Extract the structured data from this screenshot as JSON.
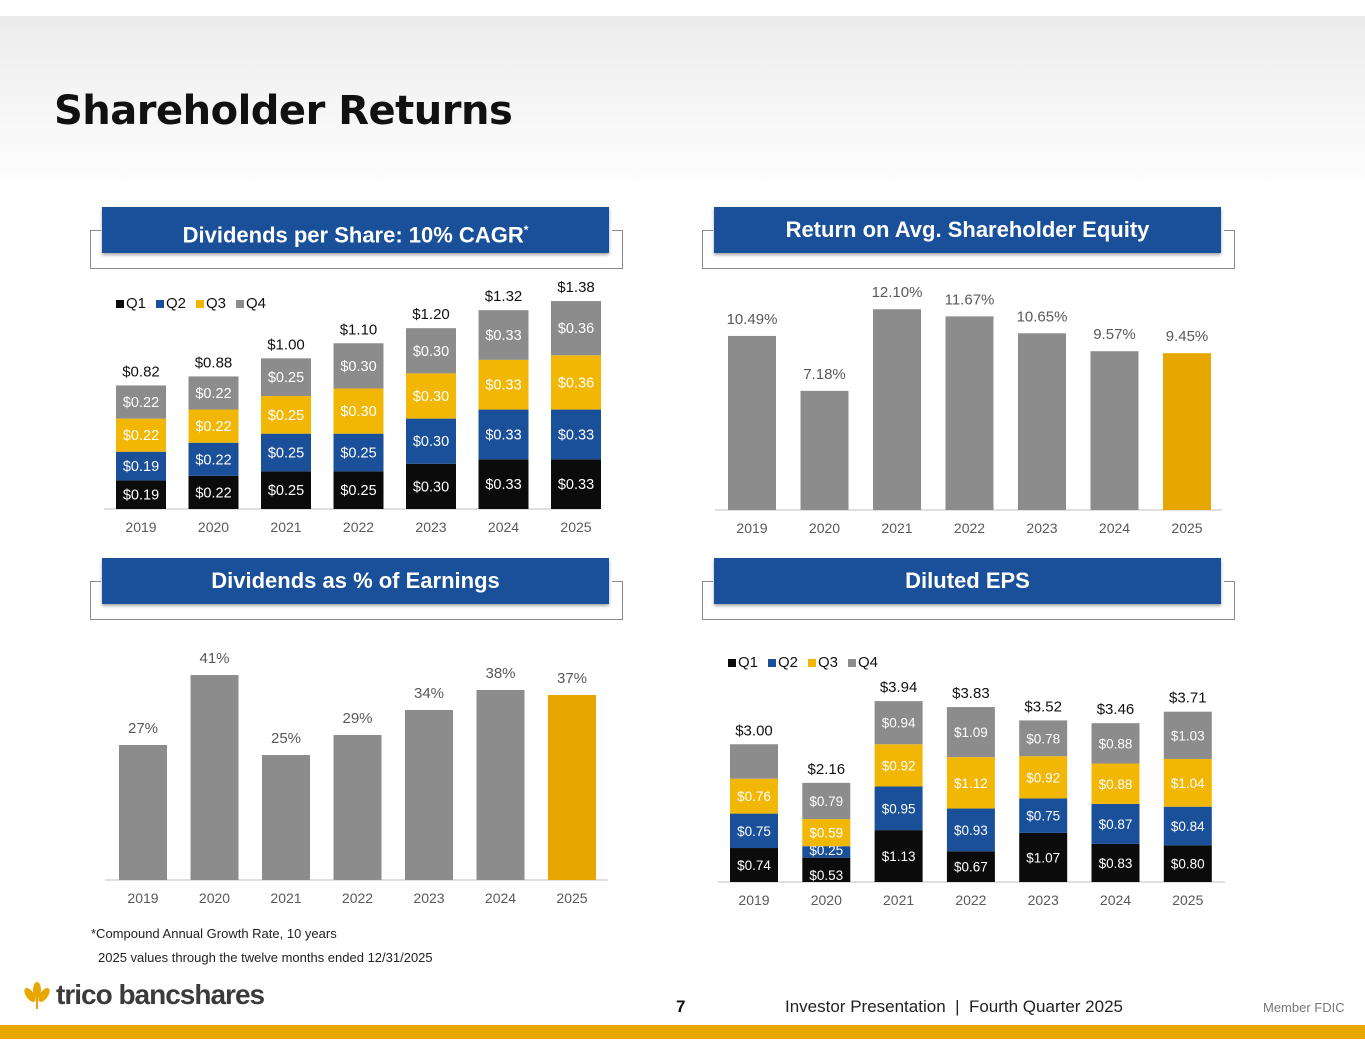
{
  "page_title": "Shareholder Returns",
  "panels": {
    "dividends": {
      "title": "Dividends per Share: 10% CAGR",
      "marker": "*"
    },
    "roe": {
      "title": "Return on Avg. Shareholder Equity"
    },
    "payout": {
      "title": "Dividends as % of Earnings"
    },
    "eps": {
      "title": "Diluted EPS"
    }
  },
  "footnotes": {
    "cagr": "*Compound Annual Growth Rate, 10 years",
    "period": "2025 values through the twelve months ended 12/31/2025"
  },
  "footer": {
    "logo_text": "trico bancshares",
    "page_number": "7",
    "presentation": "Investor Presentation  |  Fourth Quarter 2025",
    "member": "Member FDIC"
  },
  "colors": {
    "q1": "#0b0b0b",
    "q2": "#1a4f99",
    "q3": "#f2b705",
    "q4": "#8c8c8c",
    "gray": "#8c8c8c",
    "gold": "#e8a600",
    "header": "#1a4f99"
  },
  "chart_data": [
    {
      "id": "dividends",
      "type": "stacked-bar",
      "title": "Dividends per Share: 10% CAGR",
      "legend": [
        "Q1",
        "Q2",
        "Q3",
        "Q4"
      ],
      "legend_position": "top-left",
      "categories": [
        "2019",
        "2020",
        "2021",
        "2022",
        "2023",
        "2024",
        "2025"
      ],
      "series": [
        {
          "name": "Q1",
          "values": [
            0.19,
            0.22,
            0.25,
            0.25,
            0.3,
            0.33,
            0.33
          ],
          "labels": [
            "$0.19",
            "$0.22",
            "$0.25",
            "$0.25",
            "$0.30",
            "$0.33",
            "$0.33"
          ]
        },
        {
          "name": "Q2",
          "values": [
            0.19,
            0.22,
            0.25,
            0.25,
            0.3,
            0.33,
            0.33
          ],
          "labels": [
            "$0.19",
            "$0.22",
            "$0.25",
            "$0.25",
            "$0.30",
            "$0.33",
            "$0.33"
          ]
        },
        {
          "name": "Q3",
          "values": [
            0.22,
            0.22,
            0.25,
            0.3,
            0.3,
            0.33,
            0.36
          ],
          "labels": [
            "$0.22",
            "$0.22",
            "$0.25",
            "$0.30",
            "$0.30",
            "$0.33",
            "$0.36"
          ]
        },
        {
          "name": "Q4",
          "values": [
            0.22,
            0.22,
            0.25,
            0.3,
            0.3,
            0.33,
            0.36
          ],
          "labels": [
            "$0.22",
            "$0.22",
            "$0.25",
            "$0.30",
            "$0.30",
            "$0.33",
            "$0.36"
          ]
        }
      ],
      "totals": [
        "$0.82",
        "$0.88",
        "$1.00",
        "$1.10",
        "$1.20",
        "$1.32",
        "$1.38"
      ],
      "ylim": [
        0,
        1.5
      ]
    },
    {
      "id": "roe",
      "type": "bar",
      "title": "Return on Avg. Shareholder Equity",
      "categories": [
        "2019",
        "2020",
        "2021",
        "2022",
        "2023",
        "2024",
        "2025"
      ],
      "values": [
        10.49,
        7.18,
        12.1,
        11.67,
        10.65,
        9.57,
        9.45
      ],
      "labels": [
        "10.49%",
        "7.18%",
        "12.10%",
        "11.67%",
        "10.65%",
        "9.57%",
        "9.45%"
      ],
      "highlight": [
        false,
        false,
        false,
        false,
        false,
        false,
        true
      ],
      "ylim": [
        0,
        13.5
      ]
    },
    {
      "id": "payout",
      "type": "bar",
      "title": "Dividends as % of Earnings",
      "categories": [
        "2019",
        "2020",
        "2021",
        "2022",
        "2023",
        "2024",
        "2025"
      ],
      "values": [
        27,
        41,
        25,
        29,
        34,
        38,
        37
      ],
      "labels": [
        "27%",
        "41%",
        "25%",
        "29%",
        "34%",
        "38%",
        "37%"
      ],
      "highlight": [
        false,
        false,
        false,
        false,
        false,
        false,
        true
      ],
      "ylim": [
        0,
        45
      ]
    },
    {
      "id": "eps",
      "type": "stacked-bar",
      "title": "Diluted EPS",
      "legend": [
        "Q1",
        "Q2",
        "Q3",
        "Q4"
      ],
      "legend_position": "top-left",
      "categories": [
        "2019",
        "2020",
        "2021",
        "2022",
        "2023",
        "2024",
        "2025"
      ],
      "series": [
        {
          "name": "Q1",
          "values": [
            0.74,
            0.53,
            1.13,
            0.67,
            1.07,
            0.83,
            0.8
          ],
          "labels": [
            "$0.74",
            "$0.53",
            "$1.13",
            "$0.67",
            "$1.07",
            "$0.83",
            "$0.80"
          ]
        },
        {
          "name": "Q2",
          "values": [
            0.75,
            0.25,
            0.95,
            0.93,
            0.75,
            0.87,
            0.84
          ],
          "labels": [
            "$0.75",
            "$0.25",
            "$0.95",
            "$0.93",
            "$0.75",
            "$0.87",
            "$0.84"
          ]
        },
        {
          "name": "Q3",
          "values": [
            0.76,
            0.59,
            0.92,
            1.12,
            0.92,
            0.88,
            1.04
          ],
          "labels": [
            "$0.76",
            "$0.59",
            "$0.92",
            "$1.12",
            "$0.92",
            "$0.88",
            "$1.04"
          ]
        },
        {
          "name": "Q4",
          "values": [
            0.75,
            0.79,
            0.94,
            1.09,
            0.78,
            0.88,
            1.03
          ],
          "labels": [
            "",
            "$0.79",
            "$0.94",
            "$1.09",
            "$0.78",
            "$0.88",
            "$1.03"
          ]
        }
      ],
      "totals": [
        "$3.00",
        "$2.16",
        "$3.94",
        "$3.83",
        "$3.52",
        "$3.46",
        "$3.71"
      ],
      "ylim": [
        0,
        4.4
      ]
    }
  ]
}
